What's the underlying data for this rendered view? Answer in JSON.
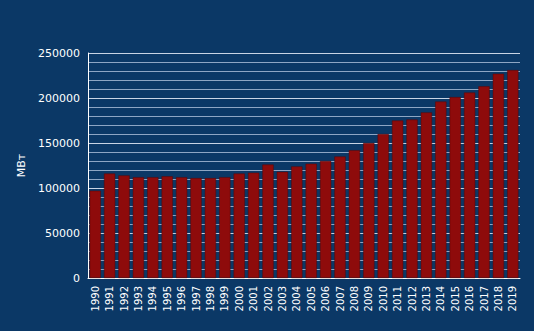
{
  "chart_data": {
    "type": "bar",
    "y_label": "МВт",
    "categories": [
      "1990",
      "1991",
      "1992",
      "1993",
      "1994",
      "1995",
      "1996",
      "1997",
      "1998",
      "1999",
      "2000",
      "2001",
      "2002",
      "2003",
      "2004",
      "2005",
      "2006",
      "2007",
      "2008",
      "2009",
      "2010",
      "2011",
      "2012",
      "2013",
      "2014",
      "2015",
      "2016",
      "2017",
      "2018",
      "2019"
    ],
    "values": [
      97000,
      116000,
      114000,
      112000,
      112000,
      113000,
      112000,
      111000,
      111000,
      112000,
      116000,
      117000,
      126000,
      118000,
      124000,
      127000,
      130000,
      135000,
      142000,
      150000,
      160000,
      175000,
      176000,
      184000,
      196000,
      201000,
      206000,
      213000,
      227000,
      231000
    ],
    "color": "#8e0b0b",
    "ylim": [
      0,
      250000
    ],
    "yticks": [
      0,
      50000,
      100000,
      150000,
      200000,
      250000
    ],
    "grid": true
  }
}
